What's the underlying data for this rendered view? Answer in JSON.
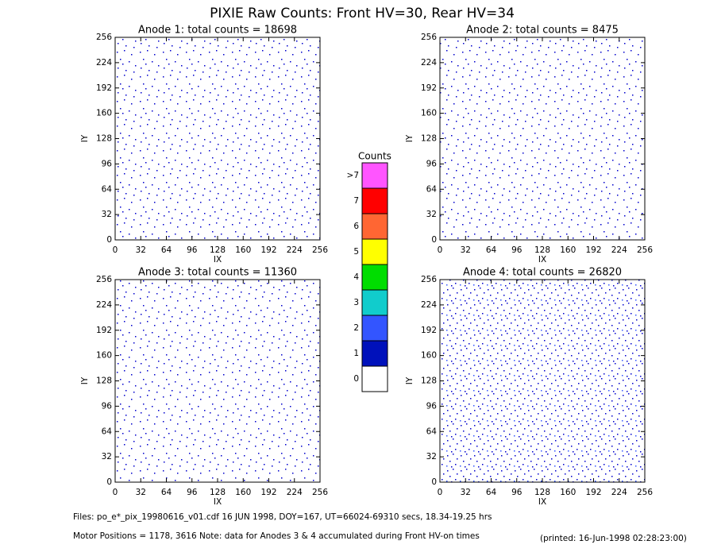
{
  "title": "PIXIE Raw Counts:  Front HV=30, Rear HV=34",
  "chart_data": [
    {
      "type": "heatmap",
      "title": "Anode 1: total counts = 18698",
      "xlabel": "IX",
      "ylabel": "IY",
      "xlim": [
        0,
        256
      ],
      "ylim": [
        0,
        256
      ],
      "xticks": [
        0,
        32,
        64,
        96,
        128,
        160,
        192,
        224,
        256
      ],
      "yticks": [
        0,
        32,
        64,
        96,
        128,
        160,
        192,
        224,
        256
      ]
    },
    {
      "type": "heatmap",
      "title": "Anode 2: total counts = 8475",
      "xlabel": "IX",
      "ylabel": "IY",
      "xlim": [
        0,
        256
      ],
      "ylim": [
        0,
        256
      ],
      "xticks": [
        0,
        32,
        64,
        96,
        128,
        160,
        192,
        224,
        256
      ],
      "yticks": [
        0,
        32,
        64,
        96,
        128,
        160,
        192,
        224,
        256
      ]
    },
    {
      "type": "heatmap",
      "title": "Anode 3: total counts = 11360",
      "xlabel": "IX",
      "ylabel": "IY",
      "xlim": [
        0,
        256
      ],
      "ylim": [
        0,
        256
      ],
      "xticks": [
        0,
        32,
        64,
        96,
        128,
        160,
        192,
        224,
        256
      ],
      "yticks": [
        0,
        32,
        64,
        96,
        128,
        160,
        192,
        224,
        256
      ]
    },
    {
      "type": "heatmap",
      "title": "Anode 4: total counts = 26820",
      "xlabel": "IX",
      "ylabel": "IY",
      "xlim": [
        0,
        256
      ],
      "ylim": [
        0,
        256
      ],
      "xticks": [
        0,
        32,
        64,
        96,
        128,
        160,
        192,
        224,
        256
      ],
      "yticks": [
        0,
        32,
        64,
        96,
        128,
        160,
        192,
        224,
        256
      ]
    }
  ],
  "colorbar": {
    "title": "Counts",
    "labels": [
      "0",
      "1",
      "2",
      "3",
      "4",
      "5",
      "6",
      "7",
      ">7"
    ],
    "colors": [
      "#ffffff",
      "#0011bb",
      "#3355ff",
      "#11cccc",
      "#00dd00",
      "#ffff00",
      "#ff6633",
      "#ff0000",
      "#ff55ff"
    ]
  },
  "footer": {
    "files": "Files: po_e*_pix_19980616_v01.cdf    16 JUN 1998, DOY=167, UT=66024-69310 secs, 18.34-19.25 hrs",
    "motor": "Motor Positions = 1178, 3616   Note: data for Anodes 3 & 4 accumulated during Front HV-on times",
    "printed": "(printed: 16-Jun-1998 02:28:23:00)"
  }
}
